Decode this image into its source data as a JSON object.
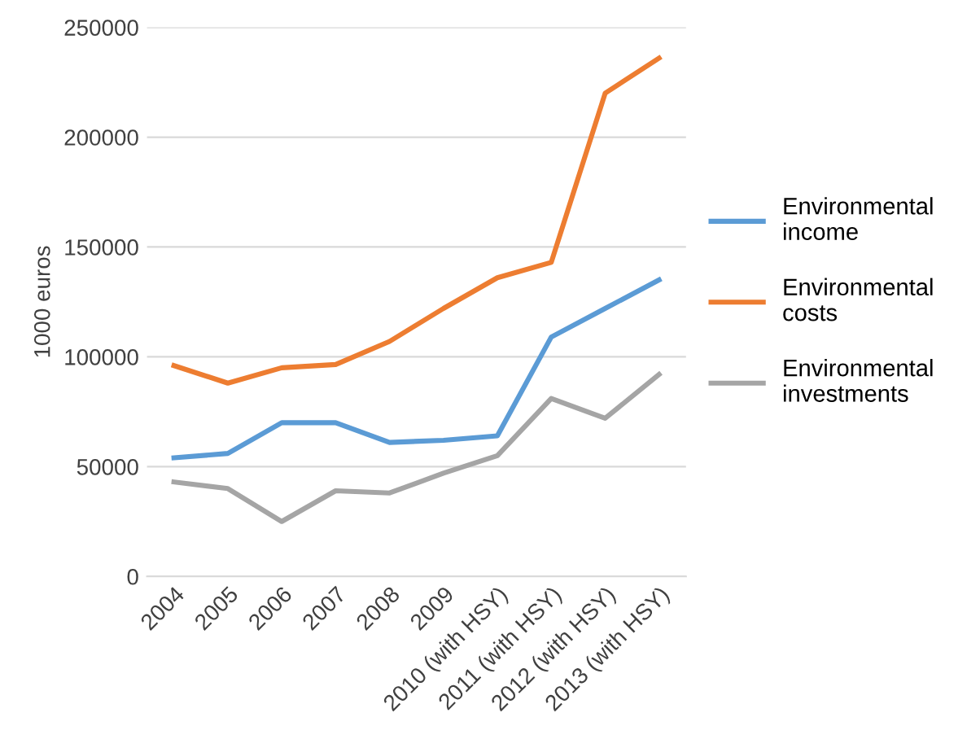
{
  "chart_data": {
    "type": "line",
    "ylabel": "1000 euros",
    "categories": [
      "2004",
      "2005",
      "2006",
      "2007",
      "2008",
      "2009",
      "2010 (with HSY)",
      "2011 (with HSY)",
      "2012 (with HSY)",
      "2013 (with HSY)"
    ],
    "series": [
      {
        "name": "Environmental income",
        "color": "#5b9bd5",
        "values": [
          54000,
          56000,
          70000,
          70000,
          61000,
          62000,
          64000,
          109000,
          122000,
          135000
        ]
      },
      {
        "name": "Environmental costs",
        "color": "#ed7d31",
        "values": [
          96000,
          88000,
          95000,
          96500,
          107000,
          122000,
          136000,
          143000,
          220000,
          236000
        ]
      },
      {
        "name": "Environmental investments",
        "color": "#a5a5a5",
        "values": [
          43000,
          40000,
          25000,
          39000,
          38000,
          47000,
          55000,
          81000,
          72000,
          92000
        ]
      }
    ],
    "ylim": [
      0,
      250000
    ],
    "yticks": [
      0,
      50000,
      100000,
      150000,
      200000,
      250000
    ],
    "grid": "y",
    "legend": "right",
    "marker": "none",
    "line_style": "solid"
  }
}
